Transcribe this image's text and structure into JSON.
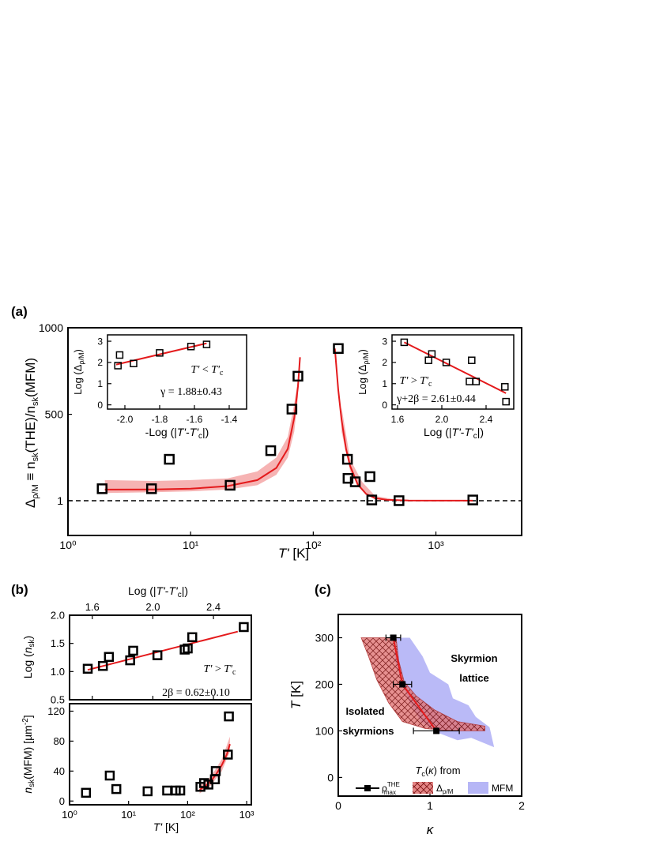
{
  "panel_labels": {
    "a": "(a)",
    "b": "(b)",
    "c": "(c)"
  },
  "colors": {
    "fit": "#e41a1c",
    "band": "#f4a6a6",
    "hatch": "#d9534f",
    "mfm": "#a9a9f5",
    "line": "#000000"
  },
  "chart_data": [
    {
      "id": "a-main",
      "type": "scatter",
      "xlabel": "T' [K]",
      "ylabel": "Δ_ρ/M ≡ n_sk(THE)/n_sk(MFM)",
      "xscale": "log",
      "xlim": [
        1,
        5000
      ],
      "ylim": [
        -200,
        1000
      ],
      "xticks": [
        {
          "v": 1,
          "label": "10⁰"
        },
        {
          "v": 10,
          "label": "10¹"
        },
        {
          "v": 100,
          "label": "10²"
        },
        {
          "v": 1000,
          "label": "10³"
        }
      ],
      "yticks": [
        {
          "v": 1,
          "label": "1"
        },
        {
          "v": 500,
          "label": "500"
        },
        {
          "v": 1000,
          "label": "1000"
        }
      ],
      "reference_line": {
        "y": 1,
        "style": "dashed"
      },
      "points": [
        {
          "x": 1.9,
          "y": 70
        },
        {
          "x": 4.8,
          "y": 70
        },
        {
          "x": 6.7,
          "y": 240
        },
        {
          "x": 21,
          "y": 90
        },
        {
          "x": 45,
          "y": 290
        },
        {
          "x": 67,
          "y": 530
        },
        {
          "x": 75,
          "y": 720
        },
        {
          "x": 160,
          "y": 880
        },
        {
          "x": 190,
          "y": 240
        },
        {
          "x": 192,
          "y": 130
        },
        {
          "x": 220,
          "y": 110
        },
        {
          "x": 290,
          "y": 140
        },
        {
          "x": 300,
          "y": 5
        },
        {
          "x": 500,
          "y": 1
        },
        {
          "x": 2000,
          "y": 5
        }
      ],
      "fit_left": {
        "x": [
          2,
          5,
          10,
          20,
          35,
          50,
          62,
          70,
          75,
          78
        ],
        "y": [
          65,
          66,
          70,
          85,
          120,
          190,
          300,
          480,
          660,
          830
        ]
      },
      "fit_right": {
        "x": [
          150,
          160,
          170,
          185,
          200,
          230,
          270,
          320,
          400,
          600,
          1000,
          2000
        ],
        "y": [
          880,
          640,
          470,
          300,
          200,
          95,
          40,
          15,
          6,
          2,
          1,
          1
        ]
      },
      "band_left": {
        "x": [
          2,
          5,
          10,
          20,
          35,
          50,
          62,
          70,
          75
        ],
        "ylo": [
          45,
          50,
          55,
          65,
          90,
          150,
          250,
          400,
          600
        ],
        "yhi": [
          120,
          115,
          120,
          130,
          170,
          250,
          370,
          560,
          700
        ]
      },
      "band_right": {
        "x": [
          170,
          200,
          250,
          320,
          450,
          600
        ],
        "ylo": [
          400,
          170,
          60,
          12,
          3,
          1
        ],
        "yhi": [
          540,
          240,
          110,
          28,
          10,
          3
        ]
      }
    },
    {
      "id": "a-inset-left",
      "type": "scatter",
      "xlabel": "-Log (|T'-T'c|)",
      "ylabel": "Log (Δ_ρ/M)",
      "xlim": [
        -2.1,
        -1.3
      ],
      "ylim": [
        -0.2,
        3.3
      ],
      "xticks": [
        {
          "v": -2.0,
          "label": "-2.0"
        },
        {
          "v": -1.8,
          "label": "-1.8"
        },
        {
          "v": -1.6,
          "label": "-1.6"
        },
        {
          "v": -1.4,
          "label": "-1.4"
        }
      ],
      "yticks": [
        {
          "v": 0,
          "label": "0"
        },
        {
          "v": 1,
          "label": "1"
        },
        {
          "v": 2,
          "label": "2"
        },
        {
          "v": 3,
          "label": "3"
        }
      ],
      "points": [
        {
          "x": -2.04,
          "y": 1.85
        },
        {
          "x": -2.03,
          "y": 2.35
        },
        {
          "x": -1.95,
          "y": 1.95
        },
        {
          "x": -1.8,
          "y": 2.45
        },
        {
          "x": -1.62,
          "y": 2.75
        },
        {
          "x": -1.53,
          "y": 2.85
        }
      ],
      "fit": {
        "x": [
          -2.05,
          -1.53
        ],
        "y": [
          1.9,
          2.9
        ]
      },
      "annotation": "T' < T'c",
      "result": "γ = 1.88±0.43"
    },
    {
      "id": "a-inset-right",
      "type": "scatter",
      "xlabel": "Log (|T'-T'c|)",
      "ylabel": "Log (Δ_ρ/M)",
      "xlim": [
        1.55,
        2.65
      ],
      "ylim": [
        -0.2,
        3.3
      ],
      "xticks": [
        {
          "v": 1.6,
          "label": "1.6"
        },
        {
          "v": 2.0,
          "label": "2.0"
        },
        {
          "v": 2.4,
          "label": "2.4"
        }
      ],
      "yticks": [
        {
          "v": 0,
          "label": "0"
        },
        {
          "v": 1,
          "label": "1"
        },
        {
          "v": 2,
          "label": "2"
        },
        {
          "v": 3,
          "label": "3"
        }
      ],
      "points": [
        {
          "x": 1.66,
          "y": 2.95
        },
        {
          "x": 1.88,
          "y": 2.1
        },
        {
          "x": 1.91,
          "y": 2.4
        },
        {
          "x": 2.04,
          "y": 2.0
        },
        {
          "x": 2.25,
          "y": 1.1
        },
        {
          "x": 2.27,
          "y": 2.1
        },
        {
          "x": 2.31,
          "y": 1.1
        },
        {
          "x": 2.57,
          "y": 0.85
        },
        {
          "x": 2.58,
          "y": 0.15
        }
      ],
      "fit": {
        "x": [
          1.66,
          2.58
        ],
        "y": [
          2.95,
          0.55
        ]
      },
      "annotation": "T' > T'c",
      "result": "γ+2β = 2.61±0.44"
    },
    {
      "id": "b-top",
      "type": "scatter",
      "xlabel": "Log (|T'-T'c|)",
      "ylabel": "Log (n_sk)",
      "xlim": [
        1.45,
        2.65
      ],
      "ylim": [
        0.5,
        2.0
      ],
      "xticks": [
        {
          "v": 1.6,
          "label": "1.6"
        },
        {
          "v": 2.0,
          "label": "2.0"
        },
        {
          "v": 2.4,
          "label": "2.4"
        }
      ],
      "yticks": [
        {
          "v": 0.5,
          "label": "0.5"
        },
        {
          "v": 1.0,
          "label": "1.0"
        },
        {
          "v": 1.5,
          "label": "1.5"
        },
        {
          "v": 2.0,
          "label": "2.0"
        }
      ],
      "points": [
        {
          "x": 1.57,
          "y": 1.05
        },
        {
          "x": 1.67,
          "y": 1.1
        },
        {
          "x": 1.71,
          "y": 1.26
        },
        {
          "x": 1.85,
          "y": 1.2
        },
        {
          "x": 1.87,
          "y": 1.37
        },
        {
          "x": 2.03,
          "y": 1.29
        },
        {
          "x": 2.21,
          "y": 1.39
        },
        {
          "x": 2.23,
          "y": 1.41
        },
        {
          "x": 2.26,
          "y": 1.61
        },
        {
          "x": 2.6,
          "y": 1.79
        }
      ],
      "fit": {
        "x": [
          1.57,
          2.56
        ],
        "y": [
          1.03,
          1.71
        ]
      },
      "annotation": "T' > T'c",
      "result": "2β = 0.62±0.10"
    },
    {
      "id": "b-bottom",
      "type": "scatter",
      "xlabel": "T' [K]",
      "ylabel": "n_sk(MFM) [µm⁻²]",
      "xscale": "log",
      "xlim": [
        1,
        1200
      ],
      "ylim": [
        -5,
        130
      ],
      "xticks": [
        {
          "v": 1,
          "label": "10⁰"
        },
        {
          "v": 10,
          "label": "10¹"
        },
        {
          "v": 100,
          "label": "10²"
        },
        {
          "v": 1000,
          "label": "10³"
        }
      ],
      "yticks": [
        {
          "v": 0,
          "label": "0"
        },
        {
          "v": 40,
          "label": "40"
        },
        {
          "v": 80,
          "label": "80"
        },
        {
          "v": 120,
          "label": "120"
        }
      ],
      "points": [
        {
          "x": 1.9,
          "y": 11
        },
        {
          "x": 4.8,
          "y": 34
        },
        {
          "x": 6.2,
          "y": 16
        },
        {
          "x": 21,
          "y": 13
        },
        {
          "x": 45,
          "y": 14
        },
        {
          "x": 63,
          "y": 14
        },
        {
          "x": 75,
          "y": 14
        },
        {
          "x": 165,
          "y": 19
        },
        {
          "x": 190,
          "y": 24
        },
        {
          "x": 225,
          "y": 22
        },
        {
          "x": 290,
          "y": 29
        },
        {
          "x": 300,
          "y": 40
        },
        {
          "x": 480,
          "y": 62
        },
        {
          "x": 500,
          "y": 113
        }
      ],
      "fit": {
        "x": [
          160,
          200,
          250,
          300,
          380,
          460,
          520
        ],
        "y": [
          15,
          20,
          27,
          35,
          48,
          62,
          76
        ]
      },
      "band": {
        "x": [
          160,
          250,
          380,
          520
        ],
        "ylo": [
          10,
          21,
          40,
          66
        ],
        "yhi": [
          20,
          33,
          56,
          86
        ]
      }
    },
    {
      "id": "c",
      "type": "area",
      "xlabel": "κ",
      "ylabel": "T [K]",
      "xlim": [
        0,
        2
      ],
      "ylim": [
        -40,
        350
      ],
      "xticks": [
        {
          "v": 0,
          "label": "0"
        },
        {
          "v": 1,
          "label": "1"
        },
        {
          "v": 2,
          "label": "2"
        }
      ],
      "yticks": [
        {
          "v": 0,
          "label": "0"
        },
        {
          "v": 100,
          "label": "100"
        },
        {
          "v": 200,
          "label": "200"
        },
        {
          "v": 300,
          "label": "300"
        }
      ],
      "labels": {
        "lattice": [
          "Skyrmion",
          "lattice"
        ],
        "isolated": [
          "Isolated",
          "skyrmions"
        ]
      },
      "series": [
        {
          "name": "ρ_max^THE",
          "kind": "line",
          "x": [
            0.6,
            0.7,
            1.07
          ],
          "y": [
            300,
            200,
            100
          ],
          "xerr": [
            0.08,
            0.1,
            0.25
          ]
        },
        {
          "name": "Δ_ρ/M",
          "kind": "hatched-band"
        },
        {
          "name": "MFM",
          "kind": "band"
        }
      ],
      "legend_title": "T_c(κ) from",
      "mfm_poly": [
        [
          0.62,
          300
        ],
        [
          0.78,
          300
        ],
        [
          0.92,
          260
        ],
        [
          1.0,
          225
        ],
        [
          1.2,
          200
        ],
        [
          1.25,
          170
        ],
        [
          1.42,
          155
        ],
        [
          1.5,
          130
        ],
        [
          1.65,
          108
        ],
        [
          1.7,
          65
        ],
        [
          1.45,
          85
        ],
        [
          1.3,
          80
        ],
        [
          1.1,
          95
        ],
        [
          0.9,
          120
        ],
        [
          0.78,
          160
        ],
        [
          0.7,
          200
        ],
        [
          0.62,
          250
        ]
      ],
      "delta_poly": [
        [
          0.25,
          300
        ],
        [
          0.63,
          300
        ],
        [
          0.66,
          250
        ],
        [
          0.72,
          205
        ],
        [
          0.85,
          175
        ],
        [
          1.05,
          145
        ],
        [
          1.3,
          120
        ],
        [
          1.6,
          110
        ],
        [
          1.6,
          100
        ],
        [
          1.25,
          100
        ],
        [
          0.95,
          105
        ],
        [
          0.7,
          120
        ],
        [
          0.55,
          160
        ],
        [
          0.42,
          210
        ],
        [
          0.33,
          260
        ]
      ]
    }
  ]
}
